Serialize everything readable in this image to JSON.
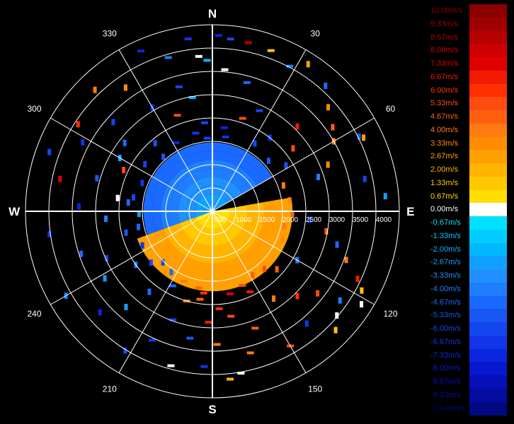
{
  "chart_data": {
    "type": "polar-radar",
    "directions": {
      "n": "N",
      "e": "E",
      "s": "S",
      "w": "W"
    },
    "azimuth_labels": [
      "30",
      "60",
      "120",
      "150",
      "210",
      "240",
      "300",
      "330"
    ],
    "range_labels": [
      "500",
      "1000",
      "1500",
      "2000",
      "2500",
      "3000",
      "3500",
      "4000"
    ],
    "range_max": 4200,
    "velocity_pattern": {
      "blue_sector_deg": [
        250,
        60
      ],
      "orange_sector_deg": [
        80,
        250
      ],
      "inner_range_max": 1550,
      "outer_range_max": 1800
    },
    "colorbar": {
      "labels": [
        "10.00m/s",
        "9.33m/s",
        "8.67m/s",
        "8.00m/s",
        "7.33m/s",
        "6.67m/s",
        "6.00m/s",
        "5.33m/s",
        "4.67m/s",
        "4.00m/s",
        "3.33m/s",
        "2.67m/s",
        "2.00m/s",
        "1.33m/s",
        "0.67m/s",
        "0.00m/s",
        "-0.67m/s",
        "-1.33m/s",
        "-2.00m/s",
        "-2.67m/s",
        "-3.33m/s",
        "-4.00m/s",
        "-4.67m/s",
        "-5.33m/s",
        "-6.00m/s",
        "-6.67m/s",
        "-7.33m/s",
        "-8.00m/s",
        "-8.67m/s",
        "-9.33m/s",
        "-10.00m/s"
      ],
      "colors": [
        "#8b0000",
        "#a00000",
        "#b40000",
        "#cc0000",
        "#e00000",
        "#f21a00",
        "#ff3000",
        "#ff4a10",
        "#ff6010",
        "#ff7a10",
        "#ff8c00",
        "#ffa000",
        "#ffb400",
        "#ffc800",
        "#ffdd00",
        "#ffffff",
        "#00e0ff",
        "#00ccff",
        "#00b8ff",
        "#10a0ff",
        "#2090ff",
        "#1e7eff",
        "#1a6aff",
        "#1858f0",
        "#1446f0",
        "#1036e8",
        "#0a26e0",
        "#0818cc",
        "#0610b8",
        "#040ca0",
        "#020880"
      ]
    },
    "echo_color_index": [
      0,
      2,
      4,
      6,
      8,
      10,
      12,
      14,
      16,
      18,
      20,
      22,
      24,
      26,
      28,
      15
    ],
    "echoes": [
      {
        "az": 2,
        "r": 3960,
        "c": 26
      },
      {
        "az": 352,
        "r": 3920,
        "c": 25
      },
      {
        "az": 6,
        "r": 3900,
        "c": 24
      },
      {
        "az": 12,
        "r": 3880,
        "c": 2
      },
      {
        "az": 358,
        "r": 3400,
        "c": 18
      },
      {
        "az": 5,
        "r": 3200,
        "c": 15
      },
      {
        "az": 15,
        "r": 3000,
        "c": 22
      },
      {
        "az": 345,
        "r": 2900,
        "c": 24
      },
      {
        "az": 20,
        "r": 3850,
        "c": 13
      },
      {
        "az": 28,
        "r": 3700,
        "c": 21
      },
      {
        "az": 33,
        "r": 3950,
        "c": 11
      },
      {
        "az": 42,
        "r": 3800,
        "c": 22
      },
      {
        "az": 48,
        "r": 3500,
        "c": 10
      },
      {
        "az": 55,
        "r": 3300,
        "c": 8
      },
      {
        "az": 60,
        "r": 3150,
        "c": 9
      },
      {
        "az": 63,
        "r": 3700,
        "c": 23
      },
      {
        "az": 68,
        "r": 2800,
        "c": 10
      },
      {
        "az": 72,
        "r": 2500,
        "c": 21
      },
      {
        "az": 78,
        "r": 3500,
        "c": 24
      },
      {
        "az": 85,
        "r": 3900,
        "c": 19
      },
      {
        "az": 95,
        "r": 2200,
        "c": 25
      },
      {
        "az": 100,
        "r": 2600,
        "c": 8
      },
      {
        "az": 105,
        "r": 2900,
        "c": 22
      },
      {
        "az": 110,
        "r": 3200,
        "c": 9
      },
      {
        "az": 115,
        "r": 3600,
        "c": 5
      },
      {
        "az": 118,
        "r": 3800,
        "c": 13
      },
      {
        "az": 122,
        "r": 3950,
        "c": 15
      },
      {
        "az": 125,
        "r": 3500,
        "c": 21
      },
      {
        "az": 128,
        "r": 3000,
        "c": 7
      },
      {
        "az": 135,
        "r": 2700,
        "c": 6
      },
      {
        "az": 140,
        "r": 3300,
        "c": 25
      },
      {
        "az": 145,
        "r": 2400,
        "c": 9
      },
      {
        "az": 150,
        "r": 3500,
        "c": 7
      },
      {
        "az": 155,
        "r": 2000,
        "c": 5
      },
      {
        "az": 160,
        "r": 2800,
        "c": 8
      },
      {
        "az": 165,
        "r": 3300,
        "c": 9
      },
      {
        "az": 170,
        "r": 2400,
        "c": 7
      },
      {
        "az": 174,
        "r": 3800,
        "c": 12
      },
      {
        "az": 178,
        "r": 3000,
        "c": 9
      },
      {
        "az": 183,
        "r": 3500,
        "c": 25
      },
      {
        "az": 188,
        "r": 2000,
        "c": 8
      },
      {
        "az": 190,
        "r": 2900,
        "c": 23
      },
      {
        "az": 195,
        "r": 3600,
        "c": 15
      },
      {
        "az": 200,
        "r": 2600,
        "c": 24
      },
      {
        "az": 205,
        "r": 3200,
        "c": 25
      },
      {
        "az": 212,
        "r": 3700,
        "c": 24
      },
      {
        "az": 218,
        "r": 2300,
        "c": 22
      },
      {
        "az": 222,
        "r": 2900,
        "c": 19
      },
      {
        "az": 228,
        "r": 3400,
        "c": 26
      },
      {
        "az": 235,
        "r": 2100,
        "c": 21
      },
      {
        "az": 240,
        "r": 3800,
        "c": 21
      },
      {
        "az": 246,
        "r": 2600,
        "c": 24
      },
      {
        "az": 252,
        "r": 3100,
        "c": 22
      },
      {
        "az": 256,
        "r": 2000,
        "c": 23
      },
      {
        "az": 262,
        "r": 3700,
        "c": 25
      },
      {
        "az": 266,
        "r": 2400,
        "c": 21
      },
      {
        "az": 272,
        "r": 3000,
        "c": 26
      },
      {
        "az": 276,
        "r": 1900,
        "c": 22
      },
      {
        "az": 282,
        "r": 3500,
        "c": 4
      },
      {
        "az": 286,
        "r": 2700,
        "c": 23
      },
      {
        "az": 290,
        "r": 3900,
        "c": 24
      },
      {
        "az": 295,
        "r": 2200,
        "c": 7
      },
      {
        "az": 298,
        "r": 3300,
        "c": 25
      },
      {
        "az": 303,
        "r": 3600,
        "c": 6
      },
      {
        "az": 308,
        "r": 2500,
        "c": 22
      },
      {
        "az": 312,
        "r": 3000,
        "c": 24
      },
      {
        "az": 316,
        "r": 3800,
        "c": 9
      },
      {
        "az": 320,
        "r": 2000,
        "c": 23
      },
      {
        "az": 325,
        "r": 3400,
        "c": 10
      },
      {
        "az": 330,
        "r": 2700,
        "c": 25
      },
      {
        "az": 336,
        "r": 3950,
        "c": 26
      },
      {
        "az": 340,
        "r": 2300,
        "c": 7
      },
      {
        "az": 344,
        "r": 3600,
        "c": 21
      },
      {
        "az": 350,
        "r": 2600,
        "c": 18
      },
      {
        "az": 355,
        "r": 2000,
        "c": 24
      },
      {
        "az": 8,
        "r": 1900,
        "c": 26
      },
      {
        "az": 18,
        "r": 2200,
        "c": 7
      },
      {
        "az": 25,
        "r": 2500,
        "c": 24
      },
      {
        "az": 38,
        "r": 2100,
        "c": 25
      },
      {
        "az": 45,
        "r": 2700,
        "c": 5
      },
      {
        "az": 52,
        "r": 2300,
        "c": 7
      },
      {
        "az": 58,
        "r": 1950,
        "c": 23
      },
      {
        "az": 120,
        "r": 2200,
        "c": 21
      },
      {
        "az": 132,
        "r": 1950,
        "c": 8
      },
      {
        "az": 168,
        "r": 1900,
        "c": 4
      },
      {
        "az": 176,
        "r": 2200,
        "c": 6
      },
      {
        "az": 182,
        "r": 2500,
        "c": 5
      },
      {
        "az": 186,
        "r": 1850,
        "c": 6
      },
      {
        "az": 196,
        "r": 2100,
        "c": 9
      },
      {
        "az": 208,
        "r": 1900,
        "c": 22
      },
      {
        "az": 230,
        "r": 1800,
        "c": 24
      },
      {
        "az": 244,
        "r": 1750,
        "c": 25
      },
      {
        "az": 258,
        "r": 1700,
        "c": 22
      },
      {
        "az": 268,
        "r": 1650,
        "c": 19
      },
      {
        "az": 280,
        "r": 1800,
        "c": 24
      },
      {
        "az": 292,
        "r": 1700,
        "c": 25
      },
      {
        "az": 305,
        "r": 1850,
        "c": 24
      },
      {
        "az": 318,
        "r": 1650,
        "c": 23
      },
      {
        "az": 332,
        "r": 1750,
        "c": 26
      },
      {
        "az": 348,
        "r": 1800,
        "c": 25
      },
      {
        "az": 356,
        "r": 1650,
        "c": 24
      },
      {
        "az": 10,
        "r": 1700,
        "c": 25
      },
      {
        "az": 32,
        "r": 1800,
        "c": 24
      },
      {
        "az": 48,
        "r": 1700,
        "c": 23
      },
      {
        "az": 70,
        "r": 1700,
        "c": 9
      },
      {
        "az": 82,
        "r": 1750,
        "c": 10
      },
      {
        "az": 92,
        "r": 1800,
        "c": 8
      },
      {
        "az": 102,
        "r": 1650,
        "c": 9
      },
      {
        "az": 112,
        "r": 1700,
        "c": 10
      },
      {
        "az": 138,
        "r": 1750,
        "c": 7
      },
      {
        "az": 148,
        "r": 1700,
        "c": 8
      },
      {
        "az": 158,
        "r": 1800,
        "c": 7
      },
      {
        "az": 190,
        "r": 1750,
        "c": 8
      },
      {
        "az": 202,
        "r": 1700,
        "c": 9
      },
      {
        "az": 214,
        "r": 1650,
        "c": 22
      },
      {
        "az": 224,
        "r": 1600,
        "c": 24
      },
      {
        "az": 130,
        "r": 3650,
        "c": 15
      },
      {
        "az": 170,
        "r": 3700,
        "c": 15
      },
      {
        "az": 278,
        "r": 2150,
        "c": 15
      },
      {
        "az": 355,
        "r": 3500,
        "c": 15
      },
      {
        "az": 64,
        "r": 3780,
        "c": 11
      },
      {
        "az": 238,
        "r": 2850,
        "c": 19
      },
      {
        "az": 300,
        "r": 2400,
        "c": 19
      },
      {
        "az": 134,
        "r": 3850,
        "c": 13
      }
    ]
  }
}
